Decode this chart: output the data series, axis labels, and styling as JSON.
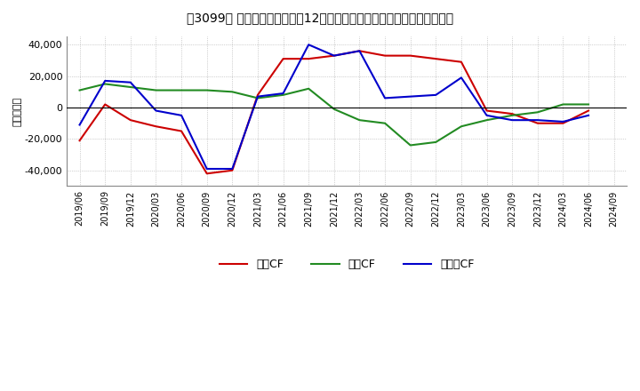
{
  "title": "[゙3099゙] キャッシュフローの12か月移動合計の対前年同期増減額の推移",
  "title_str": "［3099］ キャッシュフローの12か月移動合計の対前年同期増減額の推移",
  "ylabel": "（百万円）",
  "bg_color": "#ffffff",
  "plot_bg_color": "#ffffff",
  "grid_color": "#aaaaaa",
  "dates": [
    "2019/06",
    "2019/09",
    "2019/12",
    "2020/03",
    "2020/06",
    "2020/09",
    "2020/12",
    "2021/03",
    "2021/06",
    "2021/09",
    "2021/12",
    "2022/03",
    "2022/06",
    "2022/09",
    "2022/12",
    "2023/03",
    "2023/06",
    "2023/09",
    "2023/12",
    "2024/03",
    "2024/06",
    "2024/09"
  ],
  "eigyo_cf": [
    -21000,
    2000,
    -8000,
    -12000,
    -15000,
    -42000,
    -40000,
    8000,
    31000,
    31000,
    33000,
    36000,
    33000,
    33000,
    31000,
    29000,
    -2000,
    -4000,
    -10000,
    -10000,
    -2000,
    null
  ],
  "toshi_cf": [
    11000,
    15000,
    13000,
    11000,
    11000,
    11000,
    10000,
    6000,
    8000,
    12000,
    -1000,
    -8000,
    -10000,
    -24000,
    -22000,
    -12000,
    -8000,
    -5000,
    -3000,
    2000,
    2000,
    null
  ],
  "free_cf": [
    -11000,
    17000,
    16000,
    -2000,
    -5000,
    -39000,
    -39000,
    7000,
    9000,
    40000,
    33000,
    36000,
    6000,
    7000,
    8000,
    19000,
    -5000,
    -8000,
    -8000,
    -9000,
    -5000,
    null
  ],
  "eigyo_color": "#cc0000",
  "toshi_color": "#228B22",
  "free_color": "#0000cc",
  "ylim": [
    -50000,
    45000
  ],
  "yticks": [
    -40000,
    -20000,
    0,
    20000,
    40000
  ],
  "legend_labels": [
    "営業CF",
    "投資CF",
    "フリーCF"
  ],
  "legend_labels_str": [
    "営業CF",
    "投資CF",
    "フリーCF"
  ]
}
